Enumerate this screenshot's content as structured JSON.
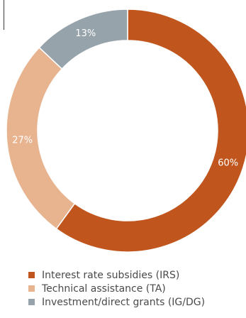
{
  "chart_data": {
    "type": "pie",
    "donut": true,
    "categories": [
      "Interest rate subsidies (IRS)",
      "Technical assistance (TA)",
      "Investment/direct grants (IG/DG)"
    ],
    "values": [
      60,
      27,
      13
    ],
    "data_labels": [
      "60%",
      "27%",
      "13%"
    ],
    "colors": [
      "#c0561e",
      "#e7b48f",
      "#97a3ab"
    ],
    "start_angle_deg": 0,
    "direction": "clockwise",
    "legend_position": "bottom-left",
    "title": "",
    "xlabel": "",
    "ylabel": ""
  }
}
